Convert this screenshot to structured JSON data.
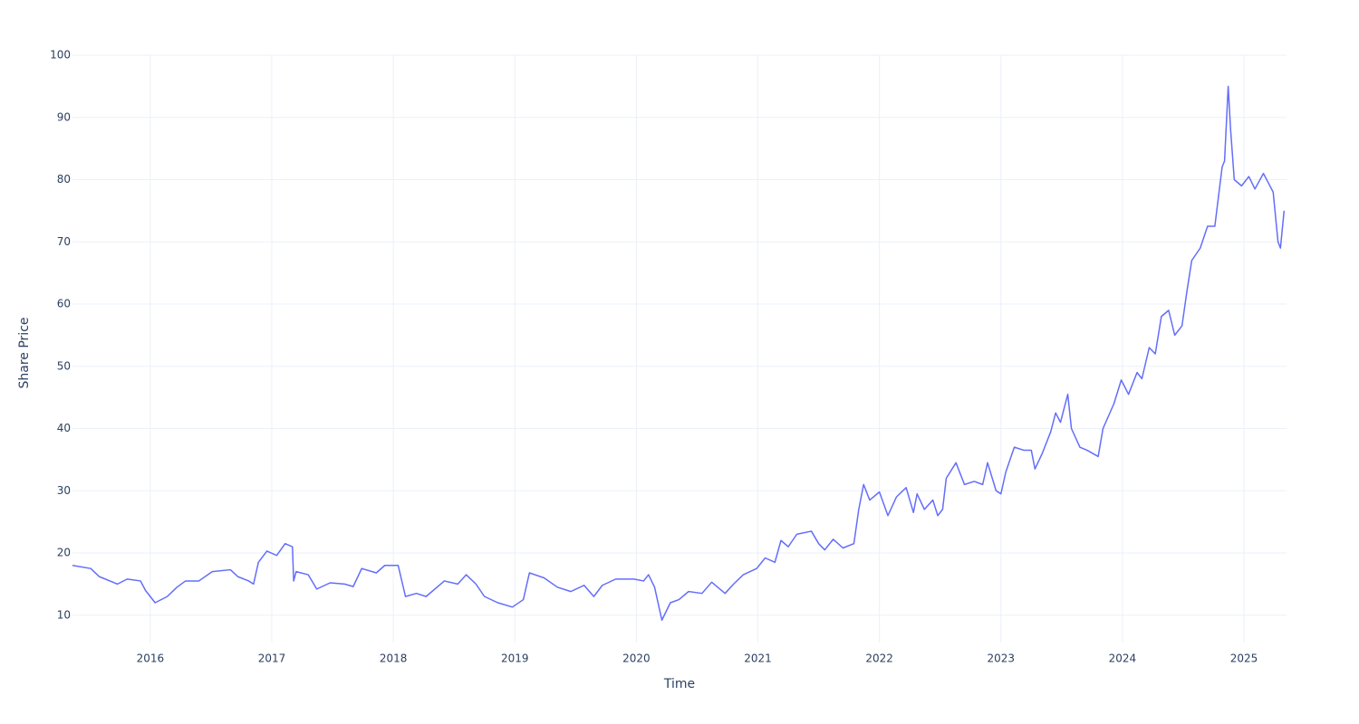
{
  "chart_data": {
    "type": "line",
    "x_label": "Time",
    "y_label": "Share Price",
    "xlim": [
      2015.36,
      2025.35
    ],
    "ylim": [
      5.6,
      100
    ],
    "xticks": [
      2016,
      2017,
      2018,
      2019,
      2020,
      2021,
      2022,
      2023,
      2024,
      2025
    ],
    "yticks": [
      10,
      20,
      30,
      40,
      50,
      60,
      70,
      80,
      90,
      100
    ],
    "grid": true,
    "x": [
      2015.36,
      2015.51,
      2015.58,
      2015.73,
      2015.81,
      2015.92,
      2015.96,
      2016.04,
      2016.14,
      2016.22,
      2016.29,
      2016.4,
      2016.51,
      2016.66,
      2016.72,
      2016.81,
      2016.85,
      2016.89,
      2016.96,
      2017.04,
      2017.11,
      2017.17,
      2017.18,
      2017.2,
      2017.3,
      2017.37,
      2017.48,
      2017.6,
      2017.67,
      2017.74,
      2017.86,
      2017.93,
      2018.04,
      2018.1,
      2018.19,
      2018.27,
      2018.42,
      2018.53,
      2018.6,
      2018.68,
      2018.75,
      2018.86,
      2018.98,
      2019.07,
      2019.12,
      2019.24,
      2019.35,
      2019.46,
      2019.57,
      2019.65,
      2019.72,
      2019.83,
      2019.98,
      2020.06,
      2020.1,
      2020.15,
      2020.21,
      2020.28,
      2020.35,
      2020.43,
      2020.54,
      2020.62,
      2020.73,
      2020.8,
      2020.88,
      2020.99,
      2021.06,
      2021.14,
      2021.19,
      2021.25,
      2021.32,
      2021.44,
      2021.5,
      2021.55,
      2021.62,
      2021.7,
      2021.79,
      2021.83,
      2021.87,
      2021.92,
      2022.0,
      2022.07,
      2022.14,
      2022.22,
      2022.28,
      2022.31,
      2022.37,
      2022.44,
      2022.48,
      2022.52,
      2022.55,
      2022.63,
      2022.7,
      2022.78,
      2022.85,
      2022.89,
      2022.96,
      2023.0,
      2023.04,
      2023.11,
      2023.19,
      2023.25,
      2023.28,
      2023.34,
      2023.41,
      2023.45,
      2023.49,
      2023.55,
      2023.58,
      2023.65,
      2023.71,
      2023.8,
      2023.84,
      2023.93,
      2023.99,
      2024.05,
      2024.12,
      2024.16,
      2024.22,
      2024.27,
      2024.32,
      2024.38,
      2024.43,
      2024.49,
      2024.53,
      2024.57,
      2024.64,
      2024.7,
      2024.76,
      2024.82,
      2024.84,
      2024.87,
      2024.89,
      2024.92,
      2024.98,
      2025.04,
      2025.09,
      2025.16,
      2025.2,
      2025.24,
      2025.28,
      2025.3,
      2025.33
    ],
    "series": [
      {
        "color": "#636efa",
        "values": [
          18,
          17.5,
          16.2,
          15,
          15.8,
          15.5,
          14,
          12,
          13,
          14.5,
          15.5,
          15.5,
          17,
          17.3,
          16.2,
          15.5,
          15,
          18.5,
          20.3,
          19.6,
          21.5,
          21,
          15.5,
          17,
          16.5,
          14.2,
          15.2,
          15,
          14.6,
          17.5,
          16.8,
          18,
          18,
          13,
          13.5,
          13,
          15.5,
          15,
          16.5,
          15,
          13,
          12,
          11.3,
          12.5,
          16.8,
          16,
          14.5,
          13.8,
          14.8,
          13,
          14.8,
          15.8,
          15.8,
          15.5,
          16.5,
          14.5,
          9.2,
          12,
          12.5,
          13.8,
          13.5,
          15.3,
          13.5,
          15,
          16.5,
          17.5,
          19.2,
          18.5,
          22,
          21,
          23,
          23.5,
          21.5,
          20.5,
          22.2,
          20.8,
          21.5,
          27,
          31,
          28.5,
          29.8,
          26,
          29,
          30.5,
          26.5,
          29.5,
          27,
          28.5,
          26,
          27,
          32,
          34.5,
          31,
          31.5,
          31,
          34.5,
          30,
          29.5,
          33,
          37,
          36.5,
          36.5,
          33.5,
          36,
          39.5,
          42.5,
          41,
          45.5,
          40,
          37,
          36.5,
          35.5,
          40,
          44,
          47.8,
          45.5,
          49,
          48,
          53,
          52,
          58,
          59,
          55,
          56.5,
          62,
          67,
          69,
          72.5,
          72.5,
          82,
          83,
          95,
          88,
          80,
          79,
          80.5,
          78.5,
          81,
          79.5,
          78,
          70,
          69,
          75
        ]
      }
    ]
  }
}
